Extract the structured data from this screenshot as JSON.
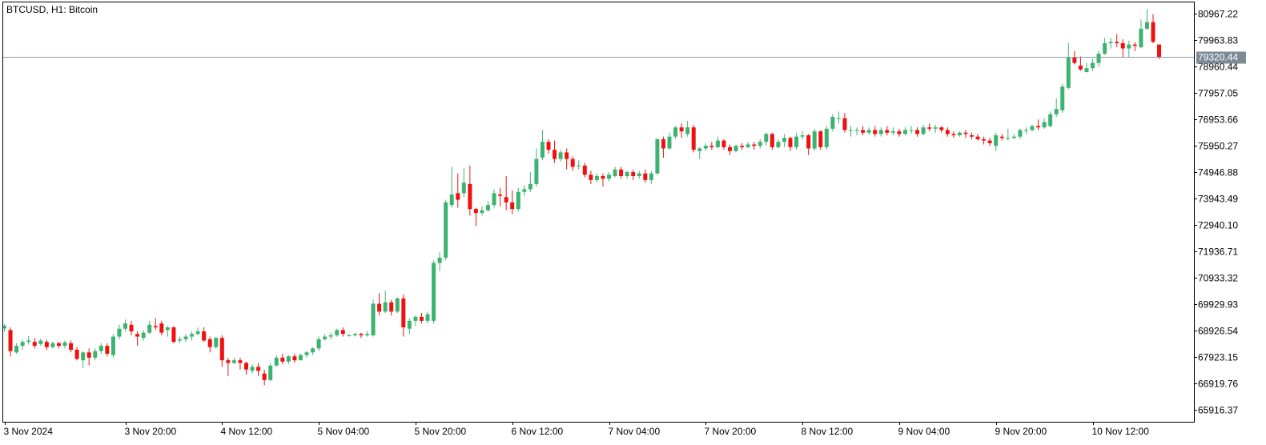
{
  "window": {
    "title": "BTCUSD, H1:  Bitcoin"
  },
  "colors": {
    "bull": "#3cb371",
    "bear": "#f01010",
    "frame": "#000000",
    "price_line": "#8a9aa6",
    "price_tag_bg": "#7b8a96",
    "background": "#ffffff"
  },
  "current_price": {
    "label": "79320.44",
    "value": 79320.44
  },
  "chart_data": {
    "type": "candlestick",
    "symbol": "BTCUSD",
    "timeframe": "H1",
    "instrument": "Bitcoin",
    "ylim": [
      65463,
      81400
    ],
    "y_ticks": [
      {
        "value": 80967.22,
        "label": "80967.22"
      },
      {
        "value": 79963.83,
        "label": "79963.83"
      },
      {
        "value": 78960.44,
        "label": "78960.44"
      },
      {
        "value": 77957.05,
        "label": "77957.05"
      },
      {
        "value": 76953.66,
        "label": "76953.66"
      },
      {
        "value": 75950.27,
        "label": "75950.27"
      },
      {
        "value": 74946.88,
        "label": "74946.88"
      },
      {
        "value": 73943.49,
        "label": "73943.49"
      },
      {
        "value": 72940.1,
        "label": "72940.10"
      },
      {
        "value": 71936.71,
        "label": "71936.71"
      },
      {
        "value": 70933.32,
        "label": "70933.32"
      },
      {
        "value": 69929.93,
        "label": "69929.93"
      },
      {
        "value": 68926.54,
        "label": "68926.54"
      },
      {
        "value": 67923.15,
        "label": "67923.15"
      },
      {
        "value": 66919.76,
        "label": "66919.76"
      },
      {
        "value": 65916.37,
        "label": "65916.37"
      }
    ],
    "x_ticks": [
      {
        "index": 0,
        "label": "3 Nov 2024"
      },
      {
        "index": 20,
        "label": "3 Nov 20:00"
      },
      {
        "index": 36,
        "label": "4 Nov 12:00"
      },
      {
        "index": 52,
        "label": "5 Nov 04:00"
      },
      {
        "index": 68,
        "label": "5 Nov 20:00"
      },
      {
        "index": 84,
        "label": "6 Nov 12:00"
      },
      {
        "index": 100,
        "label": "7 Nov 04:00"
      },
      {
        "index": 116,
        "label": "7 Nov 20:00"
      },
      {
        "index": 132,
        "label": "8 Nov 12:00"
      },
      {
        "index": 148,
        "label": "9 Nov 04:00"
      },
      {
        "index": 164,
        "label": "9 Nov 20:00"
      },
      {
        "index": 180,
        "label": "10 Nov 12:00"
      }
    ],
    "candles": [
      [
        69010,
        69110,
        68880,
        69170
      ],
      [
        68950,
        68150,
        67950,
        69050
      ],
      [
        68100,
        68350,
        68050,
        68450
      ],
      [
        68350,
        68500,
        68200,
        68580
      ],
      [
        68500,
        68550,
        68400,
        68720
      ],
      [
        68500,
        68350,
        68250,
        68650
      ],
      [
        68420,
        68550,
        68350,
        68620
      ],
      [
        68500,
        68300,
        68200,
        68580
      ],
      [
        68300,
        68450,
        68250,
        68520
      ],
      [
        68450,
        68350,
        68250,
        68500
      ],
      [
        68350,
        68480,
        68250,
        68550
      ],
      [
        68450,
        68200,
        68100,
        68550
      ],
      [
        68200,
        67850,
        67800,
        68300
      ],
      [
        67800,
        68100,
        67500,
        68150
      ],
      [
        68100,
        67900,
        67600,
        68250
      ],
      [
        67900,
        68150,
        67800,
        68250
      ],
      [
        68150,
        68350,
        68050,
        68450
      ],
      [
        68350,
        68050,
        67950,
        68450
      ],
      [
        68000,
        68700,
        67900,
        68800
      ],
      [
        68700,
        69000,
        68600,
        69150
      ],
      [
        69000,
        69200,
        68900,
        69350
      ],
      [
        69150,
        68900,
        68750,
        69300
      ],
      [
        68800,
        68700,
        68350,
        68900
      ],
      [
        68650,
        68850,
        68550,
        68950
      ],
      [
        68850,
        69150,
        68800,
        69300
      ],
      [
        69100,
        69050,
        68950,
        69400
      ],
      [
        69200,
        68850,
        68750,
        69300
      ],
      [
        68950,
        69050,
        68700,
        69100
      ],
      [
        69050,
        68500,
        68450,
        69100
      ],
      [
        68550,
        68600,
        68450,
        68700
      ],
      [
        68600,
        68700,
        68500,
        68800
      ],
      [
        68700,
        68800,
        68550,
        68900
      ],
      [
        68800,
        68900,
        68750,
        69050
      ],
      [
        68900,
        68550,
        68500,
        69050
      ],
      [
        68600,
        68300,
        68100,
        68700
      ],
      [
        68300,
        68650,
        68250,
        68700
      ],
      [
        68650,
        67800,
        67550,
        68750
      ],
      [
        67800,
        67700,
        67200,
        67900
      ],
      [
        67700,
        67800,
        67650,
        67900
      ],
      [
        67800,
        67700,
        67450,
        67900
      ],
      [
        67700,
        67450,
        67250,
        67750
      ],
      [
        67400,
        67550,
        67300,
        67650
      ],
      [
        67550,
        67400,
        67200,
        67700
      ],
      [
        67300,
        67050,
        66850,
        67450
      ],
      [
        67050,
        67600,
        67000,
        67700
      ],
      [
        67600,
        67900,
        67550,
        68000
      ],
      [
        67900,
        67750,
        67650,
        68050
      ],
      [
        67750,
        67950,
        67650,
        68000
      ],
      [
        67950,
        67800,
        67700,
        68050
      ],
      [
        67800,
        68000,
        67800,
        68050
      ],
      [
        68000,
        68100,
        67900,
        68150
      ],
      [
        68100,
        68250,
        68000,
        68300
      ],
      [
        68250,
        68600,
        68150,
        68700
      ],
      [
        68600,
        68700,
        68550,
        68800
      ],
      [
        68700,
        68750,
        68600,
        68850
      ],
      [
        68750,
        68950,
        68700,
        69000
      ],
      [
        68950,
        68800,
        68700,
        69050
      ],
      [
        68750,
        68750,
        68700,
        68800
      ],
      [
        68750,
        68800,
        68700,
        68850
      ],
      [
        68800,
        68750,
        68650,
        68850
      ],
      [
        68750,
        68800,
        68700,
        68900
      ],
      [
        68750,
        69950,
        68700,
        70100
      ],
      [
        69950,
        69650,
        69500,
        70350
      ],
      [
        69650,
        70000,
        69600,
        70450
      ],
      [
        70000,
        69650,
        69500,
        70100
      ],
      [
        69650,
        70150,
        69600,
        70200
      ],
      [
        70150,
        69050,
        68700,
        70300
      ],
      [
        69000,
        69300,
        68800,
        69400
      ],
      [
        69300,
        69450,
        69100,
        69500
      ],
      [
        69450,
        69300,
        69200,
        69600
      ],
      [
        69300,
        69550,
        69200,
        69650
      ],
      [
        69300,
        71500,
        69200,
        71600
      ],
      [
        71500,
        71700,
        71200,
        71900
      ],
      [
        71700,
        73800,
        71600,
        73900
      ],
      [
        73700,
        74100,
        73600,
        75150
      ],
      [
        74150,
        73900,
        73600,
        74900
      ],
      [
        74150,
        74550,
        74000,
        75100
      ],
      [
        74500,
        73550,
        73300,
        75200
      ],
      [
        73550,
        73400,
        72900,
        73600
      ],
      [
        73400,
        73500,
        73300,
        73650
      ],
      [
        73500,
        73700,
        73450,
        73850
      ],
      [
        73700,
        74150,
        73600,
        74300
      ],
      [
        74100,
        74050,
        73650,
        74350
      ],
      [
        74000,
        73800,
        73500,
        74800
      ],
      [
        73800,
        73550,
        73350,
        74250
      ],
      [
        73550,
        74200,
        73450,
        74350
      ],
      [
        74200,
        74300,
        74050,
        74450
      ],
      [
        74300,
        74500,
        74200,
        74950
      ],
      [
        74500,
        75450,
        74400,
        75850
      ],
      [
        75500,
        76100,
        75400,
        76550
      ],
      [
        76100,
        75800,
        75650,
        76200
      ],
      [
        75800,
        75450,
        75300,
        76150
      ],
      [
        75450,
        75700,
        75350,
        75800
      ],
      [
        75700,
        75450,
        75050,
        75850
      ],
      [
        75450,
        75150,
        75000,
        75550
      ],
      [
        75200,
        75200,
        75050,
        75400
      ],
      [
        75200,
        74850,
        74750,
        75300
      ],
      [
        74850,
        74650,
        74500,
        75000
      ],
      [
        74650,
        74800,
        74550,
        74900
      ],
      [
        74800,
        74700,
        74400,
        74900
      ],
      [
        74700,
        74850,
        74600,
        74950
      ],
      [
        74800,
        75050,
        74750,
        75150
      ],
      [
        75050,
        74800,
        74700,
        75150
      ],
      [
        74800,
        74950,
        74700,
        75000
      ],
      [
        74950,
        74800,
        74650,
        75050
      ],
      [
        74800,
        74900,
        74700,
        75000
      ],
      [
        74900,
        74650,
        74550,
        75050
      ],
      [
        74650,
        74900,
        74500,
        75000
      ],
      [
        74900,
        76200,
        74850,
        76250
      ],
      [
        76200,
        75850,
        75500,
        76300
      ],
      [
        75850,
        76300,
        75800,
        76450
      ],
      [
        76300,
        76650,
        76200,
        76700
      ],
      [
        76650,
        76500,
        76250,
        76800
      ],
      [
        76400,
        76650,
        76300,
        76900
      ],
      [
        76650,
        75800,
        75700,
        76750
      ],
      [
        75750,
        75850,
        75450,
        75900
      ],
      [
        75850,
        75950,
        75750,
        76050
      ],
      [
        75950,
        75900,
        75800,
        76100
      ],
      [
        75900,
        76150,
        75850,
        76300
      ],
      [
        76150,
        75900,
        75800,
        76200
      ],
      [
        75900,
        75750,
        75600,
        76000
      ],
      [
        75750,
        75950,
        75700,
        76000
      ],
      [
        75950,
        75900,
        75800,
        76050
      ],
      [
        75900,
        76000,
        75850,
        76100
      ],
      [
        76000,
        75950,
        75800,
        76100
      ],
      [
        75950,
        76100,
        75850,
        76200
      ],
      [
        76100,
        76400,
        75950,
        76450
      ],
      [
        76400,
        75900,
        75800,
        76450
      ],
      [
        75900,
        76100,
        75850,
        76200
      ],
      [
        76100,
        76250,
        75900,
        76400
      ],
      [
        76250,
        75900,
        75750,
        76300
      ],
      [
        75900,
        76300,
        75800,
        76450
      ],
      [
        76300,
        76350,
        76200,
        76500
      ],
      [
        76350,
        75850,
        75600,
        76400
      ],
      [
        75850,
        76500,
        75750,
        76600
      ],
      [
        76500,
        75900,
        75800,
        76550
      ],
      [
        75900,
        76600,
        75800,
        76700
      ],
      [
        76600,
        77050,
        76500,
        77150
      ],
      [
        77000,
        77000,
        76800,
        77250
      ],
      [
        77000,
        76550,
        76450,
        77200
      ],
      [
        76550,
        76550,
        76300,
        76700
      ],
      [
        76550,
        76550,
        76350,
        76650
      ],
      [
        76550,
        76450,
        76350,
        76700
      ],
      [
        76450,
        76550,
        76350,
        76650
      ],
      [
        76550,
        76400,
        76300,
        76700
      ],
      [
        76400,
        76550,
        76300,
        76650
      ],
      [
        76550,
        76450,
        76350,
        76700
      ],
      [
        76450,
        76500,
        76350,
        76650
      ],
      [
        76500,
        76400,
        76300,
        76600
      ],
      [
        76400,
        76550,
        76350,
        76650
      ],
      [
        76550,
        76550,
        76400,
        76700
      ],
      [
        76550,
        76400,
        76300,
        76650
      ],
      [
        76400,
        76650,
        76350,
        76750
      ],
      [
        76650,
        76600,
        76500,
        76800
      ],
      [
        76600,
        76650,
        76450,
        76750
      ],
      [
        76650,
        76550,
        76450,
        76700
      ],
      [
        76550,
        76400,
        76300,
        76650
      ],
      [
        76400,
        76350,
        76250,
        76500
      ],
      [
        76350,
        76450,
        76300,
        76500
      ],
      [
        76450,
        76400,
        76250,
        76550
      ],
      [
        76350,
        76300,
        76200,
        76450
      ],
      [
        76300,
        76200,
        76150,
        76400
      ],
      [
        76200,
        76150,
        76000,
        76300
      ],
      [
        76150,
        76050,
        75950,
        76250
      ],
      [
        75950,
        76350,
        75750,
        76450
      ],
      [
        76300,
        76250,
        76150,
        76400
      ],
      [
        76250,
        76250,
        76150,
        76600
      ],
      [
        76250,
        76300,
        76200,
        76400
      ],
      [
        76300,
        76550,
        76200,
        76600
      ],
      [
        76550,
        76550,
        76400,
        76650
      ],
      [
        76550,
        76700,
        76500,
        76750
      ],
      [
        76700,
        76650,
        76550,
        76950
      ],
      [
        76650,
        76850,
        76600,
        77000
      ],
      [
        76700,
        77150,
        76650,
        77250
      ],
      [
        77150,
        77350,
        77050,
        77750
      ],
      [
        77300,
        78200,
        77200,
        78300
      ],
      [
        78150,
        79300,
        78100,
        79850
      ],
      [
        79300,
        79100,
        79050,
        79550
      ],
      [
        79000,
        78850,
        78800,
        79350
      ],
      [
        78750,
        78900,
        78750,
        79100
      ],
      [
        78900,
        79100,
        78800,
        79250
      ],
      [
        79100,
        79450,
        78950,
        79550
      ],
      [
        79450,
        79850,
        79400,
        80050
      ],
      [
        79850,
        79900,
        79650,
        80050
      ],
      [
        79900,
        79850,
        79700,
        80200
      ],
      [
        79850,
        79650,
        79300,
        80000
      ],
      [
        79650,
        79800,
        79300,
        79950
      ],
      [
        79800,
        79750,
        79550,
        79900
      ],
      [
        79700,
        80400,
        79650,
        80750
      ],
      [
        80400,
        80650,
        80350,
        81150
      ],
      [
        80650,
        79900,
        79850,
        80950
      ],
      [
        79800,
        79320,
        79250,
        79800
      ]
    ]
  }
}
